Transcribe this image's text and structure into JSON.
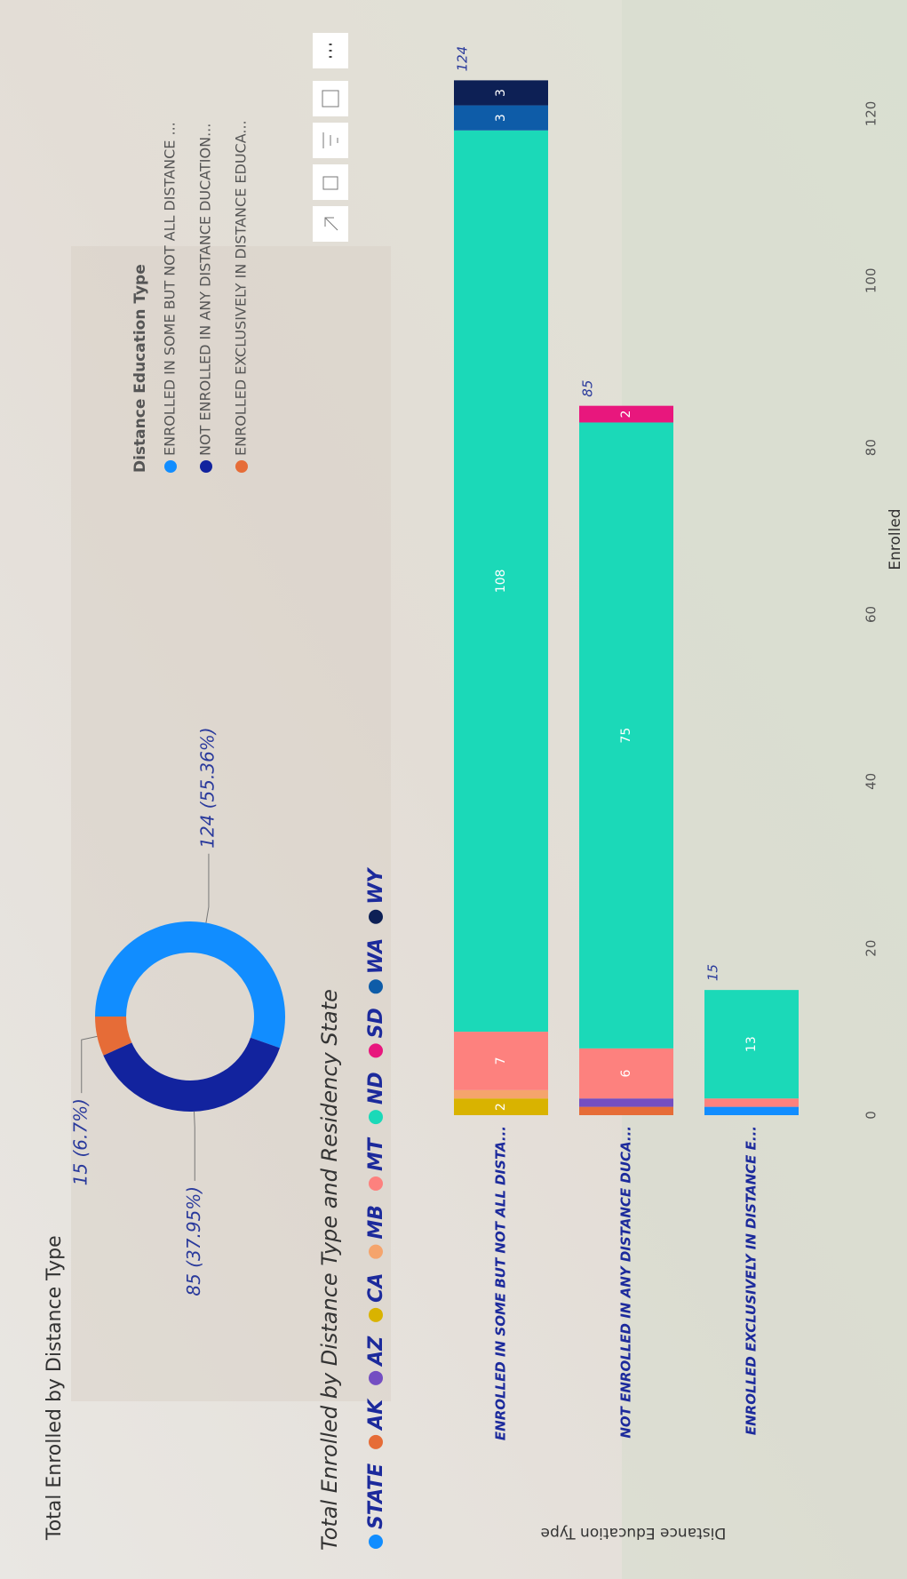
{
  "chart_data": [
    {
      "type": "donut",
      "title": "Total Enrolled by Distance Type",
      "legend_title": "Distance Education Type",
      "categories": [
        "ENROLLED IN SOME BUT NOT ALL DISTANCE ...",
        "NOT ENROLLED IN ANY DISTANCE DUCATION...",
        "ENROLLED EXCLUSIVELY IN DISTANCE EDUCA..."
      ],
      "values": [
        124,
        85,
        15
      ],
      "value_labels": [
        "124 (55.36%)",
        "85 (37.95%)",
        "15 (6.7%)"
      ],
      "colors": [
        "#118DFF",
        "#12239E",
        "#E66C37"
      ]
    },
    {
      "type": "bar",
      "orientation": "horizontal",
      "stacked": true,
      "title": "Total Enrolled by Distance Type and Residency State",
      "x_label": "Enrolled",
      "y_label": "Distance Education Type",
      "categories": [
        "ENROLLED IN SOME BUT NOT ALL DISTA...",
        "NOT ENROLLED IN ANY DISTANCE DUCA...",
        "ENROLLED EXCLUSIVELY IN DISTANCE E..."
      ],
      "series": [
        {
          "name": "STATE",
          "color": "#118DFF",
          "values": [
            null,
            null,
            1
          ]
        },
        {
          "name": "AK",
          "color": "#E66C37",
          "values": [
            null,
            1,
            null
          ]
        },
        {
          "name": "AZ",
          "color": "#744EC2",
          "values": [
            null,
            1,
            null
          ]
        },
        {
          "name": "CA",
          "color": "#D9B300",
          "values": [
            2,
            null,
            null
          ]
        },
        {
          "name": "MB",
          "color": "#F5A46C",
          "values": [
            1,
            null,
            null
          ]
        },
        {
          "name": "MT",
          "color": "#FD817E",
          "values": [
            7,
            6,
            1
          ]
        },
        {
          "name": "ND",
          "color": "#1BD9B8",
          "values": [
            108,
            75,
            13
          ]
        },
        {
          "name": "SD",
          "color": "#E8177D",
          "values": [
            null,
            2,
            null
          ]
        },
        {
          "name": "WA",
          "color": "#0E5CA8",
          "values": [
            3,
            null,
            null
          ]
        },
        {
          "name": "WY",
          "color": "#0D2055",
          "values": [
            3,
            null,
            null
          ]
        }
      ],
      "totals": [
        124,
        85,
        15
      ],
      "xlim": [
        0,
        125
      ],
      "xticks": [
        0,
        20,
        40,
        60,
        80,
        100,
        120
      ]
    }
  ]
}
